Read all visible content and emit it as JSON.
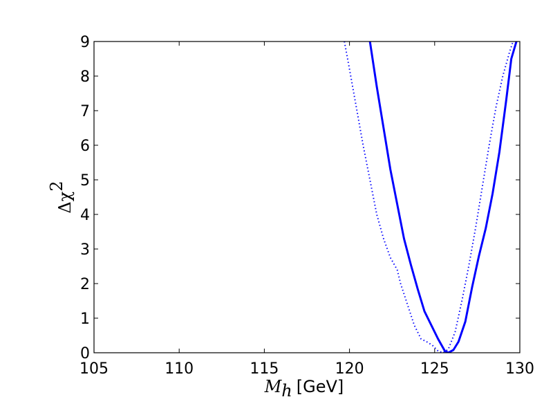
{
  "chart_data": {
    "type": "line",
    "xlim": [
      105,
      130
    ],
    "ylim": [
      0,
      9
    ],
    "x_ticks": [
      105,
      110,
      115,
      120,
      125,
      130
    ],
    "y_ticks": [
      0,
      1,
      2,
      3,
      4,
      5,
      6,
      7,
      8,
      9
    ],
    "xlabel_symbol": "M",
    "xlabel_subscript": "h",
    "xlabel_unit": "[GeV]",
    "ylabel_symbol": "Δχ",
    "ylabel_superscript": "2",
    "grid": false,
    "series": [
      {
        "style": "solid",
        "color": "#0000ff",
        "points": [
          [
            121.2,
            9.0
          ],
          [
            121.6,
            7.7
          ],
          [
            122.0,
            6.5
          ],
          [
            122.4,
            5.3
          ],
          [
            122.8,
            4.3
          ],
          [
            123.2,
            3.3
          ],
          [
            123.6,
            2.55
          ],
          [
            124.0,
            1.85
          ],
          [
            124.4,
            1.2
          ],
          [
            124.8,
            0.8
          ],
          [
            125.2,
            0.4
          ],
          [
            125.6,
            0.05
          ],
          [
            125.8,
            0.0
          ],
          [
            126.1,
            0.08
          ],
          [
            126.4,
            0.32
          ],
          [
            126.8,
            0.9
          ],
          [
            127.2,
            1.9
          ],
          [
            127.6,
            2.8
          ],
          [
            128.0,
            3.6
          ],
          [
            128.4,
            4.6
          ],
          [
            128.8,
            5.8
          ],
          [
            129.2,
            7.3
          ],
          [
            129.5,
            8.5
          ],
          [
            129.8,
            9.0
          ]
        ]
      },
      {
        "style": "dotted",
        "color": "#0000ff",
        "points": [
          [
            119.7,
            9.0
          ],
          [
            120.0,
            8.2
          ],
          [
            120.4,
            7.1
          ],
          [
            120.8,
            6.0
          ],
          [
            121.2,
            5.0
          ],
          [
            121.6,
            4.0
          ],
          [
            122.0,
            3.3
          ],
          [
            122.4,
            2.75
          ],
          [
            122.8,
            2.4
          ],
          [
            123.0,
            2.0
          ],
          [
            123.4,
            1.4
          ],
          [
            123.8,
            0.8
          ],
          [
            124.2,
            0.4
          ],
          [
            124.6,
            0.3
          ],
          [
            124.9,
            0.2
          ],
          [
            125.2,
            0.05
          ],
          [
            125.5,
            0.0
          ],
          [
            125.8,
            0.1
          ],
          [
            126.2,
            0.6
          ],
          [
            126.6,
            1.5
          ],
          [
            127.0,
            2.5
          ],
          [
            127.4,
            3.6
          ],
          [
            127.8,
            4.8
          ],
          [
            128.2,
            6.0
          ],
          [
            128.6,
            7.1
          ],
          [
            129.0,
            8.0
          ],
          [
            129.4,
            8.7
          ],
          [
            129.6,
            9.0
          ]
        ]
      }
    ]
  }
}
